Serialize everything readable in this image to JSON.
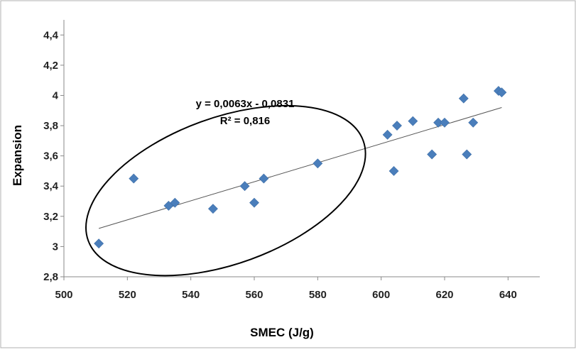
{
  "chart_data": {
    "type": "scatter",
    "xlabel": "SMEC (J/g)",
    "ylabel": "Expansion",
    "xlim": [
      500,
      650
    ],
    "ylim": [
      2.8,
      4.5
    ],
    "x_ticks": [
      500,
      520,
      540,
      560,
      580,
      600,
      620,
      640
    ],
    "x_tick_labels": [
      "500",
      "520",
      "540",
      "560",
      "580",
      "600",
      "620",
      "640"
    ],
    "y_ticks": [
      2.8,
      3.0,
      3.2,
      3.4,
      3.6,
      3.8,
      4.0,
      4.2,
      4.4
    ],
    "y_tick_labels": [
      "2,8",
      "3",
      "3,2",
      "3,4",
      "3,6",
      "3,8",
      "4",
      "4,2",
      "4,4"
    ],
    "grid": false,
    "marker_color": "#4a7ebb",
    "series": [
      {
        "marker": "diamond",
        "points": [
          [
            511,
            3.02
          ],
          [
            522,
            3.45
          ],
          [
            533,
            3.27
          ],
          [
            535,
            3.29
          ],
          [
            547,
            3.25
          ],
          [
            557,
            3.4
          ],
          [
            560,
            3.29
          ],
          [
            563,
            3.45
          ],
          [
            580,
            3.55
          ],
          [
            602,
            3.74
          ],
          [
            604,
            3.5
          ],
          [
            605,
            3.8
          ],
          [
            610,
            3.83
          ],
          [
            616,
            3.61
          ],
          [
            618,
            3.82
          ],
          [
            620,
            3.82
          ],
          [
            626,
            3.98
          ],
          [
            627,
            3.61
          ],
          [
            629,
            3.82
          ],
          [
            637,
            4.03
          ],
          [
            638,
            4.02
          ]
        ]
      }
    ],
    "trendline": {
      "type": "linear",
      "x_range": [
        511,
        638
      ],
      "y_start": 3.12,
      "y_end": 3.92,
      "equation": "y = 0,0063x - 0,0831",
      "r2": "R² = 0,816"
    },
    "annotation_ellipse": {
      "cx": 551,
      "cy": 3.37
    }
  }
}
